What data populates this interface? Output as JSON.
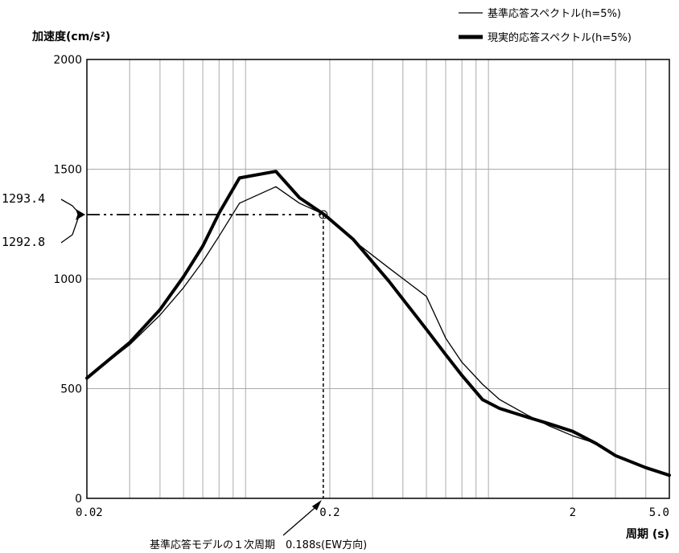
{
  "chart_data": {
    "type": "line",
    "ylabel": "加速度(cm/s²)",
    "xlabel": "周期 (s)",
    "x_scale": "log",
    "xlim": [
      0.02,
      5.0
    ],
    "ylim": [
      0,
      2000
    ],
    "grid": true,
    "legend_position": "top-right",
    "x_tick_labels": [
      {
        "value": 0.02,
        "label": "0.02"
      },
      {
        "value": 0.2,
        "label": "0.2"
      },
      {
        "value": 2,
        "label": "2"
      },
      {
        "value": 5,
        "label": "5.0"
      }
    ],
    "y_tick_labels": [
      {
        "value": 0,
        "label": "0"
      },
      {
        "value": 500,
        "label": "500"
      },
      {
        "value": 1000,
        "label": "1000"
      },
      {
        "value": 1500,
        "label": "1500"
      },
      {
        "value": 2000,
        "label": "2000"
      }
    ],
    "series": [
      {
        "name": "基準応答スペクトル(h=5%)",
        "style": "thin",
        "color": "#000000",
        "points": [
          [
            0.02,
            548
          ],
          [
            0.03,
            700
          ],
          [
            0.04,
            835
          ],
          [
            0.05,
            960
          ],
          [
            0.06,
            1080
          ],
          [
            0.07,
            1195
          ],
          [
            0.085,
            1345
          ],
          [
            0.12,
            1420
          ],
          [
            0.15,
            1345
          ],
          [
            0.19,
            1293
          ],
          [
            0.25,
            1175
          ],
          [
            0.35,
            1050
          ],
          [
            0.5,
            920
          ],
          [
            0.6,
            730
          ],
          [
            0.7,
            620
          ],
          [
            0.85,
            520
          ],
          [
            1.0,
            450
          ],
          [
            1.3,
            380
          ],
          [
            1.6,
            330
          ],
          [
            2.0,
            285
          ],
          [
            2.5,
            250
          ],
          [
            3.0,
            190
          ],
          [
            4.0,
            140
          ],
          [
            5.0,
            110
          ]
        ]
      },
      {
        "name": "現実的応答スペクトル(h=5%)",
        "style": "thick",
        "color": "#000000",
        "points": [
          [
            0.02,
            548
          ],
          [
            0.03,
            710
          ],
          [
            0.04,
            860
          ],
          [
            0.05,
            1010
          ],
          [
            0.06,
            1150
          ],
          [
            0.07,
            1300
          ],
          [
            0.085,
            1460
          ],
          [
            0.12,
            1490
          ],
          [
            0.15,
            1370
          ],
          [
            0.19,
            1293
          ],
          [
            0.25,
            1180
          ],
          [
            0.35,
            990
          ],
          [
            0.5,
            770
          ],
          [
            0.6,
            655
          ],
          [
            0.7,
            560
          ],
          [
            0.85,
            450
          ],
          [
            1.0,
            410
          ],
          [
            1.3,
            370
          ],
          [
            1.6,
            340
          ],
          [
            2.0,
            305
          ],
          [
            2.5,
            250
          ],
          [
            3.0,
            195
          ],
          [
            4.0,
            140
          ],
          [
            5.0,
            105
          ]
        ]
      }
    ],
    "annotations": {
      "upper_value_label": "1293.4",
      "lower_value_label": "1292.8",
      "crossing_value": 1293,
      "period_value": 0.188,
      "period_label": "基準応答モデルの１次周期　0.188s(EW方向)"
    }
  }
}
